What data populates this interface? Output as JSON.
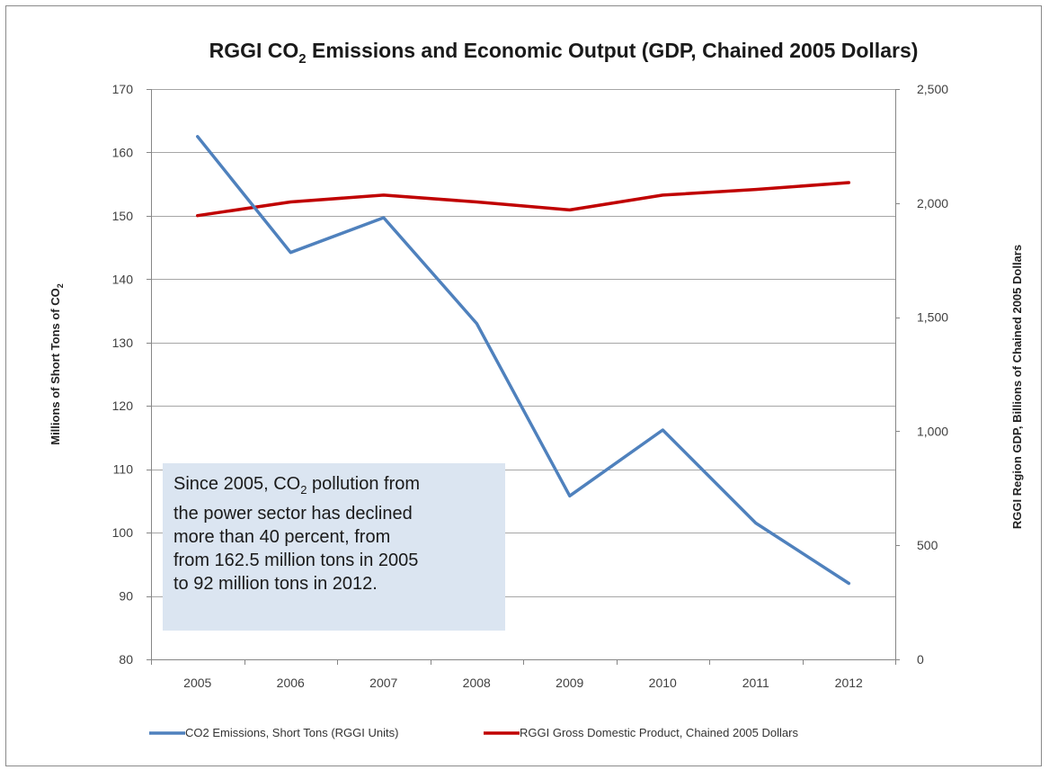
{
  "chart_data": {
    "type": "line",
    "title": {
      "pre": "RGGI CO",
      "sub": "2",
      "post": " Emissions and Economic Output (GDP, Chained 2005 Dollars)"
    },
    "categories": [
      "2005",
      "2006",
      "2007",
      "2008",
      "2009",
      "2010",
      "2011",
      "2012"
    ],
    "y_left": {
      "label_pre": "Millions of  Short Tons of CO",
      "label_sub": "2",
      "ylim": [
        80,
        170
      ],
      "ticks": [
        80,
        90,
        100,
        110,
        120,
        130,
        140,
        150,
        160,
        170
      ],
      "tick_labels": [
        "80",
        "90",
        "100",
        "110",
        "120",
        "130",
        "140",
        "150",
        "160",
        "170"
      ]
    },
    "y_right": {
      "label": "RGGI Region GDP, Billions of Chained 2005 Dollars",
      "ylim": [
        0,
        2500
      ],
      "ticks": [
        0,
        500,
        1000,
        1500,
        2000,
        2500
      ],
      "tick_labels": [
        "0",
        "500",
        "1,000",
        "1,500",
        "2,000",
        "2,500"
      ]
    },
    "series": [
      {
        "name": "CO2 Emissions, Short Tons (RGGI Units)",
        "axis": "left",
        "color": "#4f81bd",
        "values": [
          162.5,
          144.2,
          149.7,
          133.0,
          105.8,
          116.2,
          101.5,
          92.0
        ]
      },
      {
        "name": "RGGI Gross Domestic Product, Chained 2005 Dollars",
        "axis": "right",
        "color": "#c00000",
        "values": [
          1945,
          2005,
          2035,
          2005,
          1970,
          2035,
          2060,
          2090
        ]
      }
    ],
    "grid": true,
    "legend_position": "bottom"
  },
  "callout": {
    "lines": [
      {
        "pre": "Since 2005, CO",
        "sub": "2",
        "post": " pollution from"
      },
      {
        "text": "the power sector has declined"
      },
      {
        "text": "more than 40 percent, from"
      },
      {
        "text": "from 162.5 million tons in 2005"
      },
      {
        "text": "to 92 million tons in 2012."
      }
    ]
  },
  "colors": {
    "grid": "#a6a6a6",
    "callout_bg": "#dbe5f1"
  }
}
